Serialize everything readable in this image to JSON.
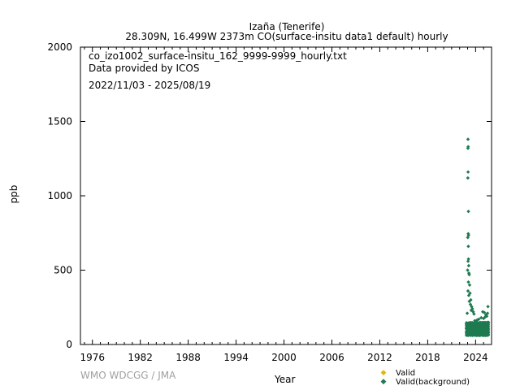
{
  "header": {
    "station": "Izaña (Tenerife)",
    "subtitle": "28.309N, 16.499W 2373m    CO(surface-insitu data1 default) hourly"
  },
  "annotations": {
    "filename": "co_izo1002_surface-insitu_162_9999-9999_hourly.txt",
    "provider": "Data provided by ICOS",
    "period": "2022/11/03 - 2025/08/19"
  },
  "credit": "WMO WDCGG / JMA",
  "colors": {
    "valid": "#e6b800",
    "background": "#1f7a50"
  },
  "chart_data": {
    "type": "scatter",
    "xlabel": "Year",
    "ylabel": "ppb",
    "xlim": [
      1974.5,
      2026.0
    ],
    "ylim": [
      0,
      2000
    ],
    "xticks": [
      1976,
      1982,
      1988,
      1994,
      2000,
      2006,
      2012,
      2018,
      2024
    ],
    "yticks": [
      0,
      500,
      1000,
      1500,
      2000
    ],
    "legend": {
      "placement": "bottom-right",
      "entries": [
        "Valid",
        "Valid(background)"
      ]
    },
    "series": [
      {
        "name": "Valid",
        "points": []
      },
      {
        "name": "Valid(background)",
        "dense_band": {
          "x_range": [
            2022.84,
            2025.63
          ],
          "y_range": [
            60,
            150
          ]
        },
        "points": [
          [
            2023.05,
            1380
          ],
          [
            2023.07,
            1330
          ],
          [
            2023.04,
            1320
          ],
          [
            2023.06,
            1160
          ],
          [
            2023.03,
            1120
          ],
          [
            2023.1,
            895
          ],
          [
            2023.08,
            745
          ],
          [
            2023.12,
            735
          ],
          [
            2023.02,
            720
          ],
          [
            2023.09,
            660
          ],
          [
            2023.11,
            575
          ],
          [
            2023.06,
            560
          ],
          [
            2023.14,
            530
          ],
          [
            2023.0,
            500
          ],
          [
            2023.16,
            480
          ],
          [
            2023.2,
            470
          ],
          [
            2023.1,
            420
          ],
          [
            2023.25,
            400
          ],
          [
            2023.05,
            360
          ],
          [
            2023.3,
            345
          ],
          [
            2023.15,
            330
          ],
          [
            2023.4,
            300
          ],
          [
            2023.22,
            290
          ],
          [
            2023.35,
            270
          ],
          [
            2023.5,
            255
          ],
          [
            2023.6,
            240
          ],
          [
            2023.45,
            230
          ],
          [
            2023.7,
            220
          ],
          [
            2022.95,
            210
          ],
          [
            2023.8,
            205
          ],
          [
            2024.9,
            220
          ],
          [
            2025.1,
            215
          ],
          [
            2025.3,
            200
          ],
          [
            2025.4,
            190
          ],
          [
            2025.2,
            185
          ],
          [
            2024.7,
            180
          ],
          [
            2025.55,
            255
          ],
          [
            2025.5,
            210
          ],
          [
            2024.4,
            170
          ],
          [
            2024.2,
            165
          ],
          [
            2023.9,
            160
          ],
          [
            2024.0,
            155
          ],
          [
            2025.0,
            175
          ]
        ]
      }
    ]
  }
}
